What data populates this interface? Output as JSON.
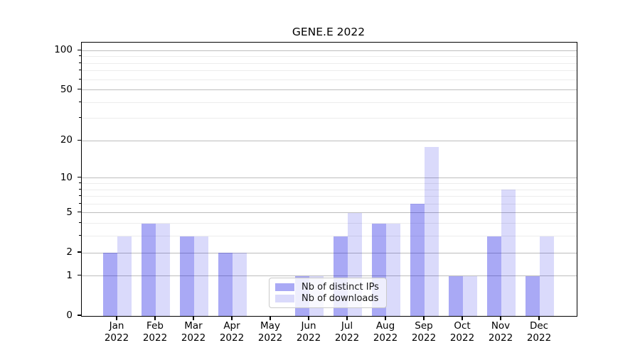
{
  "chart_data": {
    "type": "bar",
    "title": "GENE.E 2022",
    "categories": [
      "Jan 2022",
      "Feb 2022",
      "Mar 2022",
      "Apr 2022",
      "May 2022",
      "Jun 2022",
      "Jul 2022",
      "Aug 2022",
      "Sep 2022",
      "Oct 2022",
      "Nov 2022",
      "Dec 2022"
    ],
    "x_tick_labels": [
      {
        "line1": "Jan",
        "line2": "2022"
      },
      {
        "line1": "Feb",
        "line2": "2022"
      },
      {
        "line1": "Mar",
        "line2": "2022"
      },
      {
        "line1": "Apr",
        "line2": "2022"
      },
      {
        "line1": "May",
        "line2": "2022"
      },
      {
        "line1": "Jun",
        "line2": "2022"
      },
      {
        "line1": "Jul",
        "line2": "2022"
      },
      {
        "line1": "Aug",
        "line2": "2022"
      },
      {
        "line1": "Sep",
        "line2": "2022"
      },
      {
        "line1": "Oct",
        "line2": "2022"
      },
      {
        "line1": "Nov",
        "line2": "2022"
      },
      {
        "line1": "Dec",
        "line2": "2022"
      }
    ],
    "series": [
      {
        "name": "Nb of distinct IPs",
        "color": "rgba(10,10,225,0.35)",
        "values": [
          2,
          4,
          3,
          2,
          0,
          1,
          3,
          4,
          6,
          1,
          3,
          1
        ]
      },
      {
        "name": "Nb of downloads",
        "color": "rgba(10,10,225,0.15)",
        "values": [
          3,
          4,
          3,
          2,
          0,
          1,
          5,
          4,
          18,
          1,
          8,
          3
        ]
      }
    ],
    "yscale": "log1p",
    "ylim": [
      0,
      115
    ],
    "yticks_major": [
      0,
      1,
      2,
      5,
      10,
      20,
      50,
      100
    ],
    "yticks_minor": [
      3,
      4,
      6,
      7,
      8,
      9,
      30,
      40,
      60,
      70,
      80,
      90
    ],
    "grid": {
      "show": true,
      "major_color": "#bdbdbd",
      "minor_color": "#ececec"
    },
    "legend": {
      "position": "lower-center"
    }
  }
}
